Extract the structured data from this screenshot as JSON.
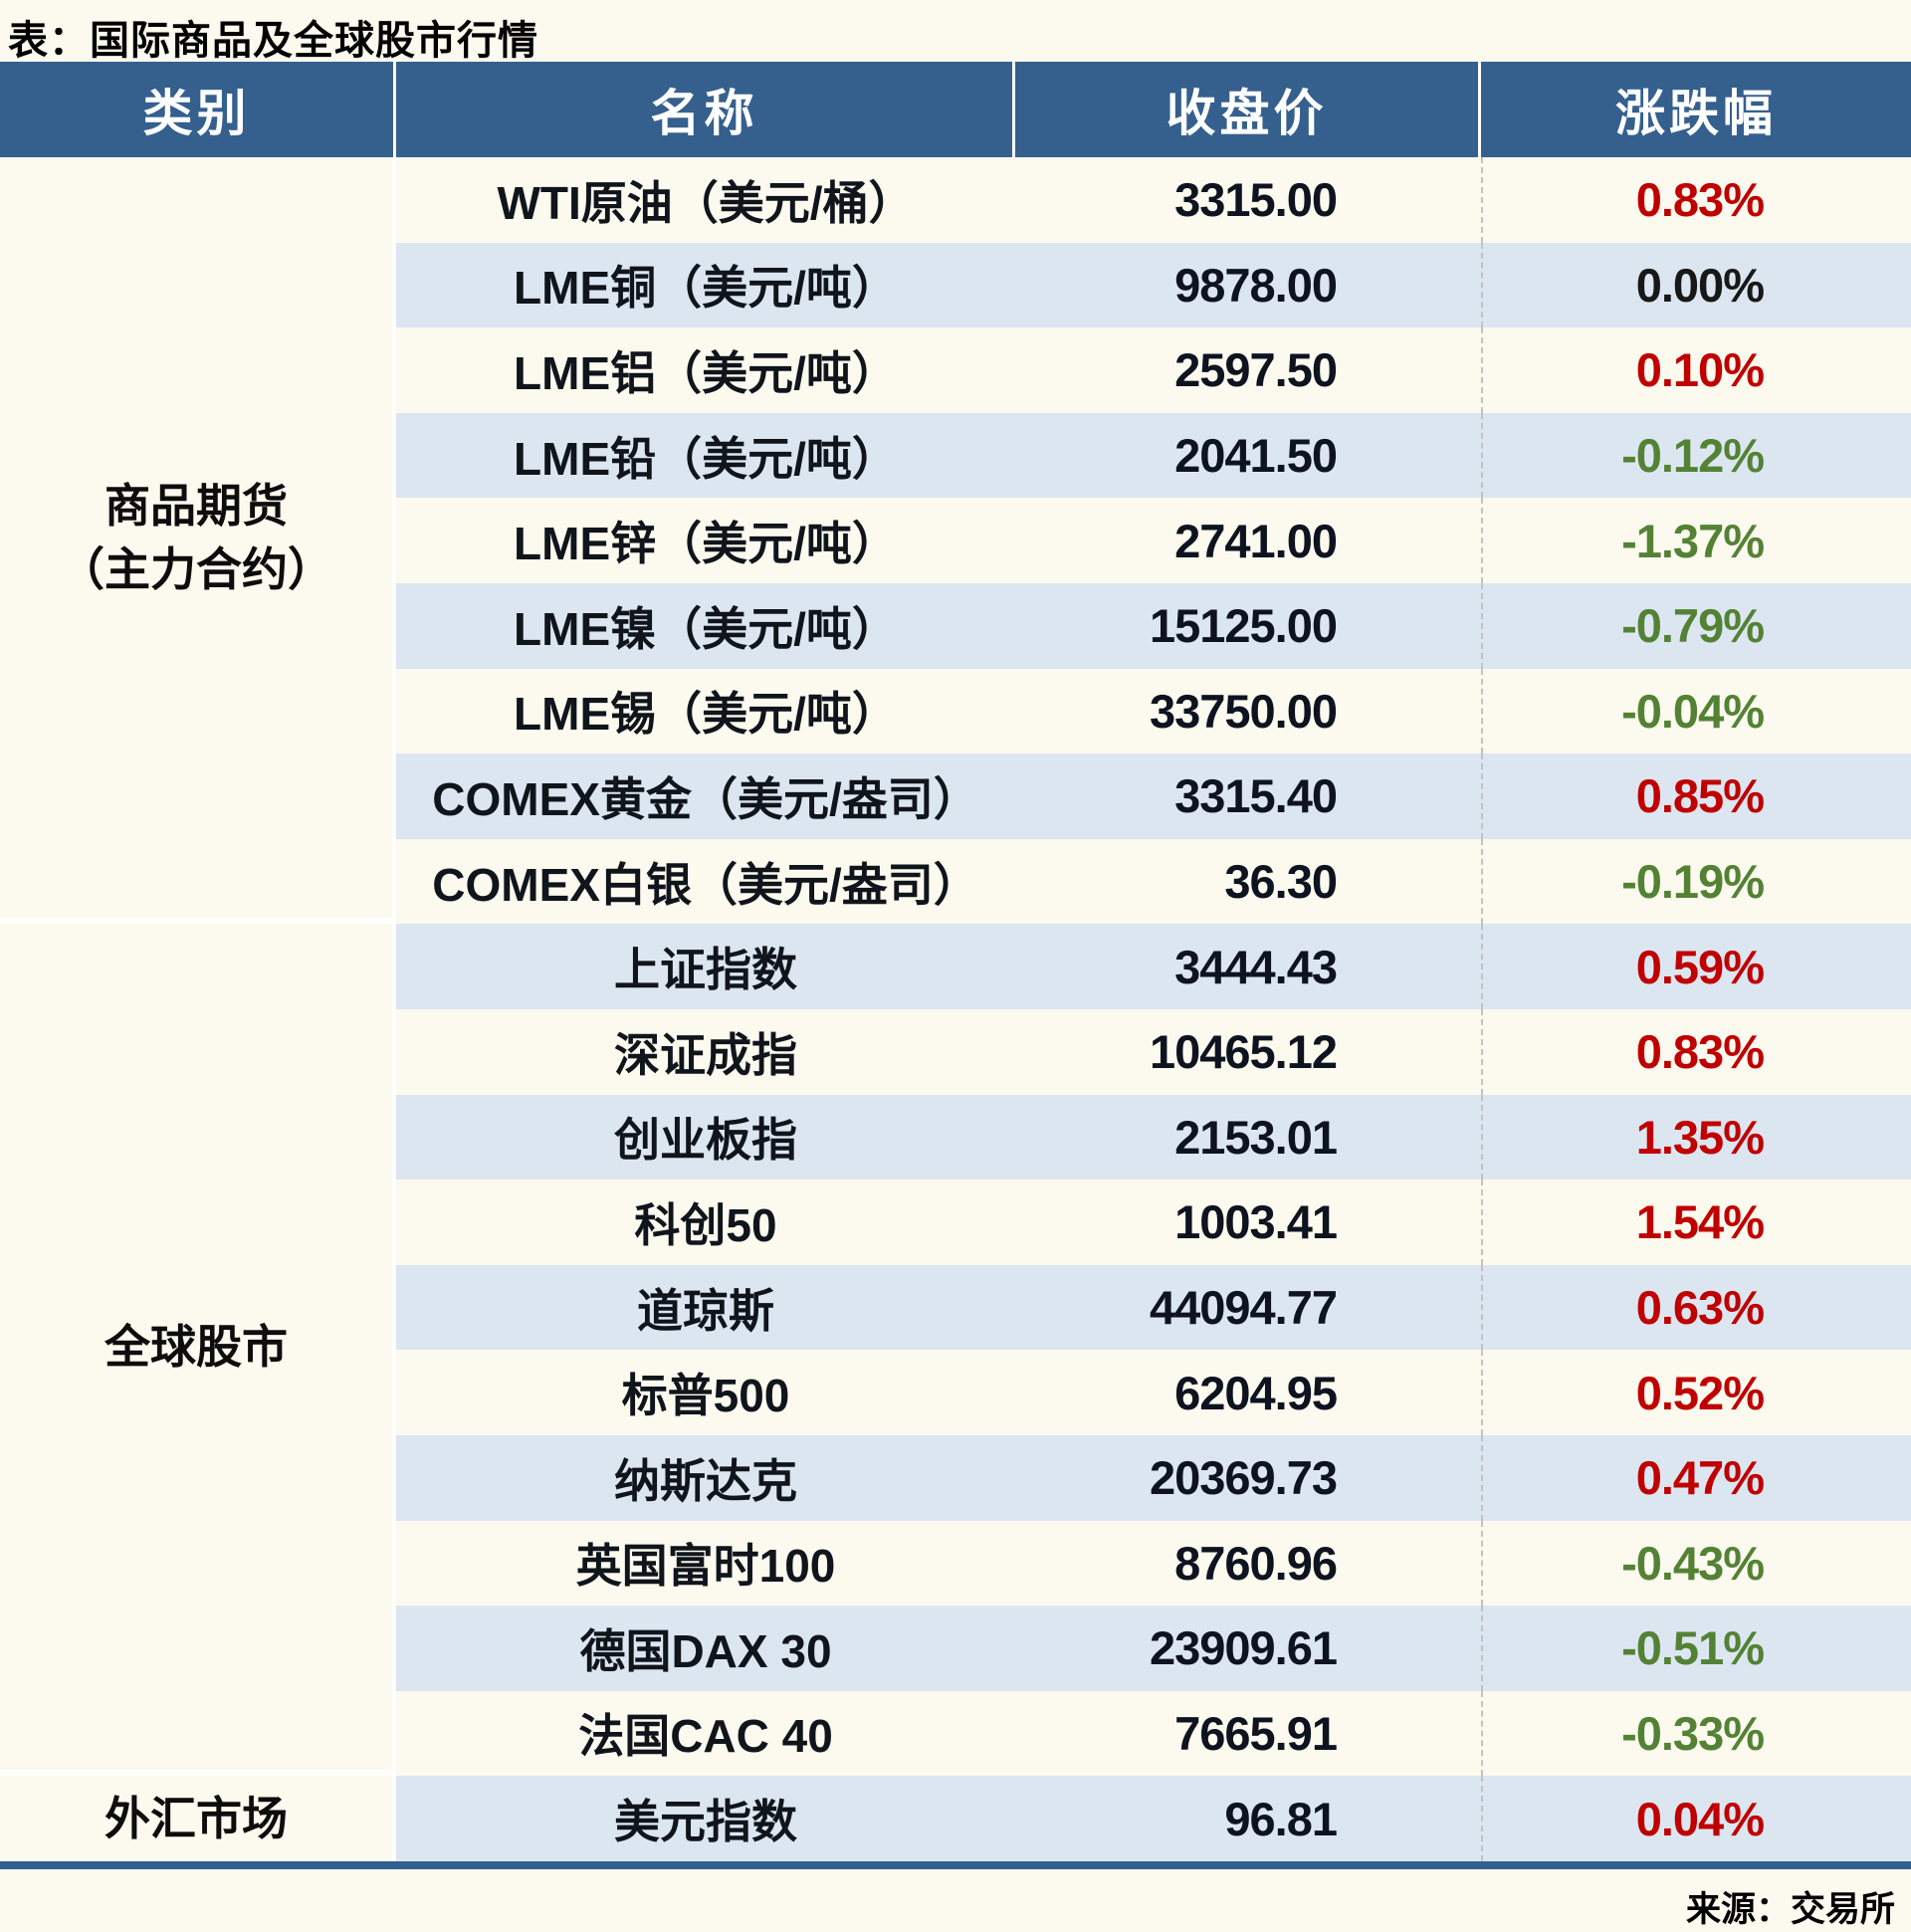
{
  "chart_data": {
    "type": "table",
    "title": "表：国际商品及全球股市行情",
    "columns": [
      "类别",
      "名称",
      "收盘价",
      "涨跌幅"
    ],
    "sections": [
      {
        "category_lines": [
          "商品期货",
          "（主力合约）"
        ],
        "rows": [
          {
            "name": "WTI原油（美元/桶）",
            "close": "3315.00",
            "change": "0.83%",
            "trend": "up"
          },
          {
            "name": "LME铜（美元/吨）",
            "close": "9878.00",
            "change": "0.00%",
            "trend": "flat"
          },
          {
            "name": "LME铝（美元/吨）",
            "close": "2597.50",
            "change": "0.10%",
            "trend": "up"
          },
          {
            "name": "LME铅（美元/吨）",
            "close": "2041.50",
            "change": "-0.12%",
            "trend": "down"
          },
          {
            "name": "LME锌（美元/吨）",
            "close": "2741.00",
            "change": "-1.37%",
            "trend": "down"
          },
          {
            "name": "LME镍（美元/吨）",
            "close": "15125.00",
            "change": "-0.79%",
            "trend": "down"
          },
          {
            "name": "LME锡（美元/吨）",
            "close": "33750.00",
            "change": "-0.04%",
            "trend": "down"
          },
          {
            "name": "COMEX黄金（美元/盎司）",
            "close": "3315.40",
            "change": "0.85%",
            "trend": "up"
          },
          {
            "name": "COMEX白银（美元/盎司）",
            "close": "36.30",
            "change": "-0.19%",
            "trend": "down"
          }
        ]
      },
      {
        "category_lines": [
          "全球股市"
        ],
        "rows": [
          {
            "name": "上证指数",
            "close": "3444.43",
            "change": "0.59%",
            "trend": "up"
          },
          {
            "name": "深证成指",
            "close": "10465.12",
            "change": "0.83%",
            "trend": "up"
          },
          {
            "name": "创业板指",
            "close": "2153.01",
            "change": "1.35%",
            "trend": "up"
          },
          {
            "name": "科创50",
            "close": "1003.41",
            "change": "1.54%",
            "trend": "up"
          },
          {
            "name": "道琼斯",
            "close": "44094.77",
            "change": "0.63%",
            "trend": "up"
          },
          {
            "name": "标普500",
            "close": "6204.95",
            "change": "0.52%",
            "trend": "up"
          },
          {
            "name": "纳斯达克",
            "close": "20369.73",
            "change": "0.47%",
            "trend": "up"
          },
          {
            "name": "英国富时100",
            "close": "8760.96",
            "change": "-0.43%",
            "trend": "down"
          },
          {
            "name": "德国DAX 30",
            "close": "23909.61",
            "change": "-0.51%",
            "trend": "down"
          },
          {
            "name": "法国CAC 40",
            "close": "7665.91",
            "change": "-0.33%",
            "trend": "down"
          }
        ]
      },
      {
        "category_lines": [
          "外汇市场"
        ],
        "rows": [
          {
            "name": "美元指数",
            "close": "96.81",
            "change": "0.04%",
            "trend": "up"
          }
        ]
      }
    ],
    "source": "来源：交易所",
    "trend_colors": {
      "up": "#c00000",
      "down": "#548235",
      "flat": "#181818"
    },
    "style_colors": {
      "header_bg": "#35608e",
      "row_base": "#fcfaef",
      "row_alt": "#dce6f1",
      "bottom_rule": "#31608f"
    }
  }
}
